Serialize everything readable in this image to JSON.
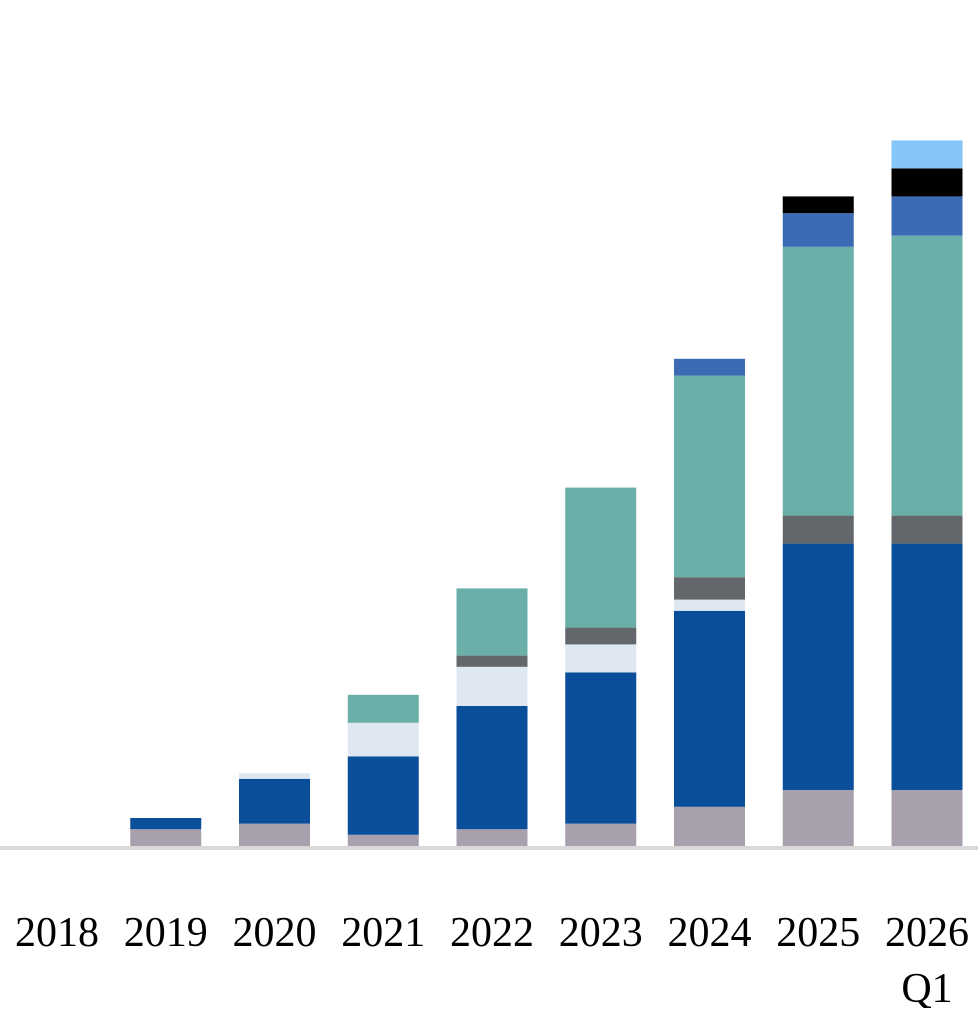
{
  "chart_data": {
    "type": "bar",
    "stacked": true,
    "categories": [
      "2018",
      "2019",
      "2020",
      "2021",
      "2022",
      "2023",
      "2024",
      "2025",
      "2026 Q1"
    ],
    "category_label_lines": [
      [
        "2018"
      ],
      [
        "2019"
      ],
      [
        "2020"
      ],
      [
        "2021"
      ],
      [
        "2022"
      ],
      [
        "2023"
      ],
      [
        "2024"
      ],
      [
        "2025"
      ],
      [
        "2026",
        "Q1"
      ]
    ],
    "series": [
      {
        "color": "#a9a0ae",
        "values": [
          0,
          3,
          4,
          2,
          3,
          4,
          7,
          10,
          10
        ]
      },
      {
        "color": "#0b4e9a",
        "values": [
          0,
          2,
          8,
          14,
          22,
          27,
          35,
          44,
          44
        ]
      },
      {
        "color": "#dfe7f1",
        "values": [
          0,
          0,
          1,
          6,
          7,
          5,
          2,
          0,
          0
        ]
      },
      {
        "color": "#63666a",
        "values": [
          0,
          0,
          0,
          0,
          2,
          3,
          4,
          5,
          5
        ]
      },
      {
        "color": "#6aafa8",
        "values": [
          0,
          0,
          0,
          5,
          12,
          25,
          36,
          48,
          50
        ]
      },
      {
        "color": "#3c6ab5",
        "values": [
          0,
          0,
          0,
          0,
          0,
          0,
          3,
          6,
          7
        ]
      },
      {
        "color": "#000000",
        "values": [
          0,
          0,
          0,
          0,
          0,
          0,
          0,
          3,
          5
        ]
      },
      {
        "color": "#85c6f9",
        "values": [
          0,
          0,
          0,
          0,
          0,
          0,
          0,
          0,
          5
        ]
      }
    ],
    "title": "",
    "xlabel": "",
    "ylabel": "",
    "ylim": [
      0,
      135
    ],
    "grid": false,
    "legend": "none",
    "y_axis_visible": false,
    "baseline_color": "#d9d9d9"
  }
}
